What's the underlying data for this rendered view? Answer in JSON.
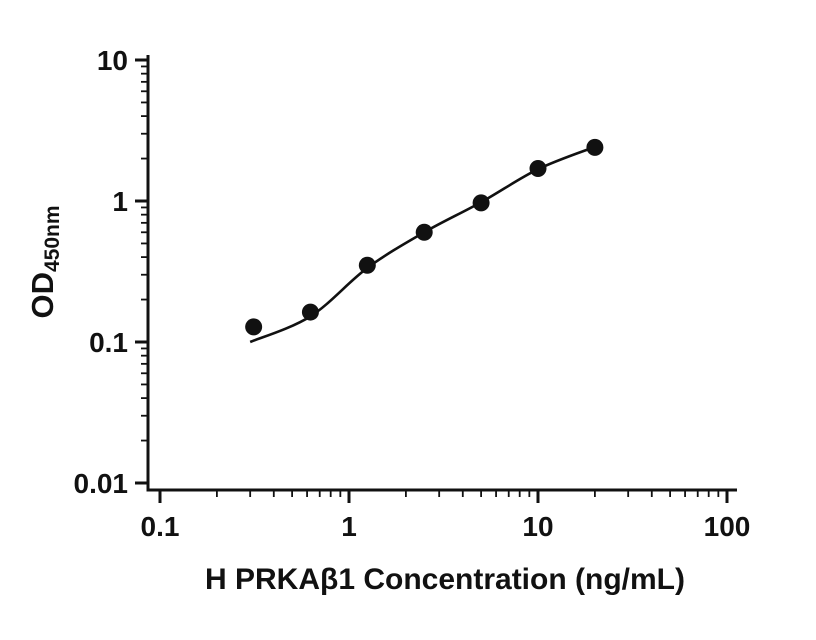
{
  "figure": {
    "background": "#ffffff",
    "axis_color": "#111111"
  },
  "chart_data": {
    "type": "scatter",
    "title": "",
    "xlabel": "H PRKAβ1 Concentration (ng/mL)",
    "ylabel_main": "OD",
    "ylabel_sub": "450nm",
    "x_scale": "log",
    "y_scale": "log",
    "xlim": [
      0.1,
      100
    ],
    "ylim": [
      0.01,
      10
    ],
    "grid": false,
    "legend": "none",
    "x_major_ticks": [
      0.1,
      1,
      10,
      100
    ],
    "x_major_tick_labels": [
      "0.1",
      "1",
      "10",
      "100"
    ],
    "y_major_ticks": [
      0.01,
      0.1,
      1,
      10
    ],
    "y_major_tick_labels": [
      "0.01",
      "0.1",
      "1",
      "10"
    ],
    "marker_color": "#111111",
    "line_color": "#111111",
    "points": {
      "x": [
        0.313,
        0.625,
        1.25,
        2.5,
        5,
        10,
        20
      ],
      "y": [
        0.128,
        0.163,
        0.35,
        0.6,
        0.97,
        1.7,
        2.4
      ]
    },
    "fit_curve": {
      "x": [
        0.3,
        0.625,
        1.25,
        2.5,
        5,
        10,
        20
      ],
      "y": [
        0.1,
        0.152,
        0.335,
        0.6,
        0.98,
        1.68,
        2.42
      ]
    }
  }
}
